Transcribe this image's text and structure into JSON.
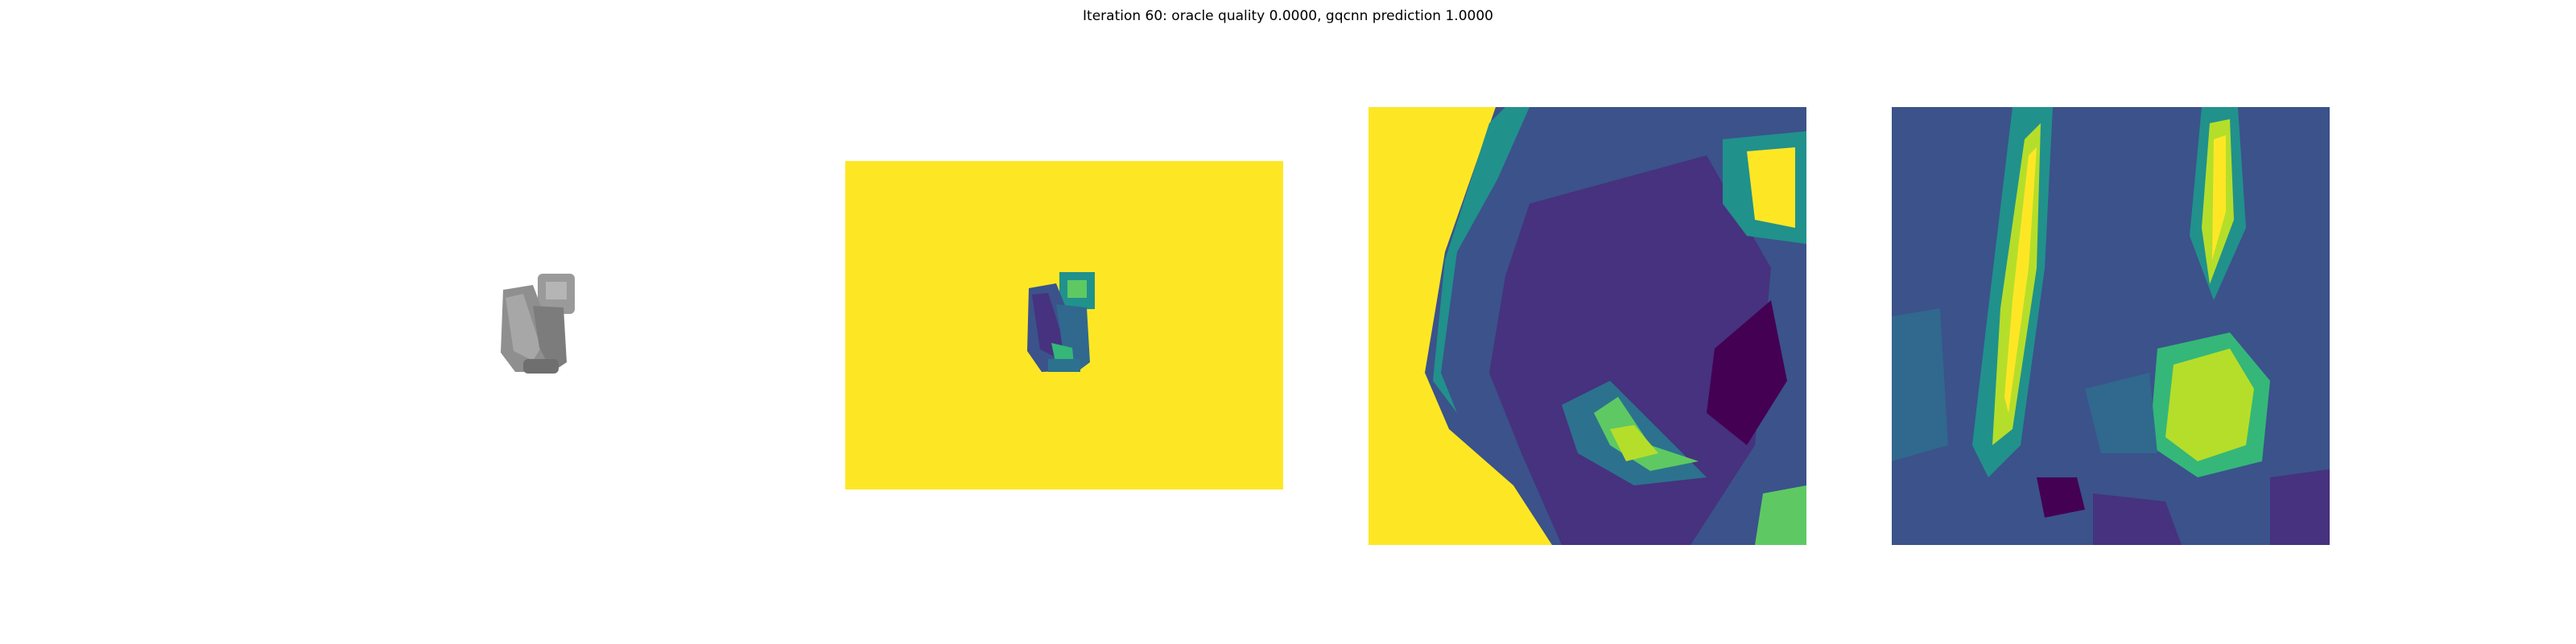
{
  "figure": {
    "title": "Iteration 60: oracle quality 0.0000, gqcnn prediction 1.0000"
  },
  "panels": [
    {
      "id": "render",
      "kind": "grayscale render of grasped object"
    },
    {
      "id": "depth",
      "kind": "viridis depth image"
    },
    {
      "id": "crop-depth",
      "kind": "zoomed viridis depth crop"
    },
    {
      "id": "crop-grad",
      "kind": "zoomed viridis gradient crop"
    }
  ],
  "colors": {
    "viridis_yellow": "#fde725",
    "viridis_green": "#5ec962",
    "viridis_teal": "#21918c",
    "viridis_blue": "#3b528b",
    "viridis_purple": "#440154",
    "object_gray": "#8a8a8a"
  }
}
